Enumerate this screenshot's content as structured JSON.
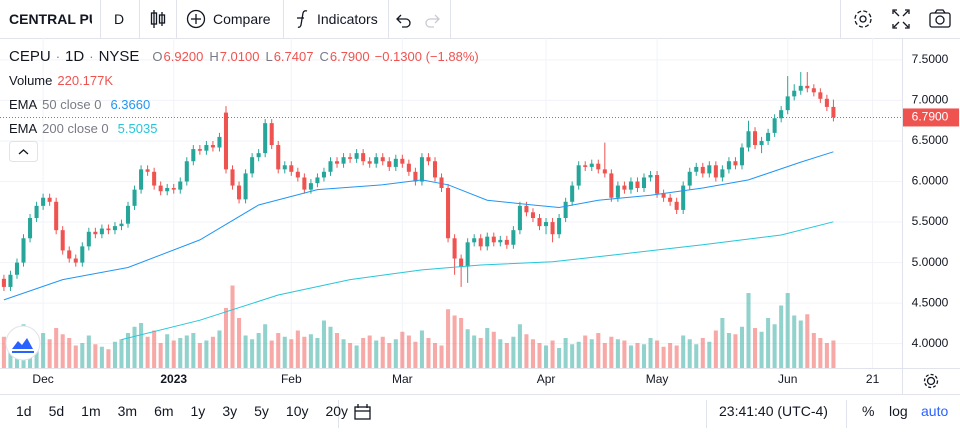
{
  "toolbar": {
    "symbol": "CENTRAL PU",
    "interval": "D",
    "compare": "Compare",
    "indicators": "Indicators"
  },
  "legend": {
    "ticker": "CEPU",
    "separator": "·",
    "interval": "1D",
    "exchange": "NYSE",
    "ohlc": [
      {
        "key": "O",
        "value": "6.9200"
      },
      {
        "key": "H",
        "value": "7.0100"
      },
      {
        "key": "L",
        "value": "6.7407"
      },
      {
        "key": "C",
        "value": "6.7900"
      }
    ],
    "change": "−0.1300 (−1.88%)",
    "volume_name": "Volume",
    "volume_value": "220.177K",
    "ema": [
      {
        "name": "EMA",
        "params": "50 close 0",
        "value": "6.3660"
      },
      {
        "name": "EMA",
        "params": "200 close 0",
        "value": "5.5035"
      }
    ]
  },
  "chart_data": {
    "type": "candlestick",
    "up_color": "#26a69a",
    "down_color": "#ef5350",
    "open": [
      4.8,
      4.7,
      4.85,
      5.0,
      5.3,
      5.55,
      5.7,
      5.8,
      5.75,
      5.4,
      5.15,
      5.05,
      5.0,
      5.2,
      5.38,
      5.35,
      5.42,
      5.4,
      5.45,
      5.48,
      5.7,
      5.9,
      6.15,
      6.12,
      5.95,
      5.88,
      5.92,
      5.9,
      6.0,
      6.25,
      6.4,
      6.38,
      6.45,
      6.42,
      6.85,
      6.15,
      5.95,
      5.78,
      6.1,
      6.3,
      6.35,
      6.72,
      6.45,
      6.15,
      6.2,
      6.12,
      6.05,
      5.9,
      5.98,
      6.05,
      6.12,
      6.25,
      6.22,
      6.3,
      6.28,
      6.35,
      6.25,
      6.22,
      6.3,
      6.25,
      6.18,
      6.28,
      6.22,
      6.12,
      6.0,
      6.3,
      6.25,
      6.05,
      5.92,
      5.3,
      5.05,
      4.95,
      5.25,
      5.3,
      5.2,
      5.32,
      5.25,
      5.28,
      5.22,
      5.4,
      5.7,
      5.62,
      5.55,
      5.45,
      5.5,
      5.35,
      5.55,
      5.75,
      5.95,
      6.2,
      6.18,
      6.22,
      6.15,
      6.1,
      5.8,
      5.95,
      5.9,
      6.0,
      5.92,
      6.05,
      6.08,
      5.85,
      5.8,
      5.75,
      5.65,
      5.95,
      6.12,
      6.18,
      6.1,
      6.2,
      6.05,
      6.15,
      6.25,
      6.2,
      6.42,
      6.62,
      6.45,
      6.5,
      6.6,
      6.78,
      6.88,
      7.05,
      7.12,
      7.18,
      7.15,
      7.1,
      7.02,
      6.92
    ],
    "high": [
      4.85,
      4.9,
      5.05,
      5.35,
      5.6,
      5.75,
      5.85,
      5.85,
      5.8,
      5.45,
      5.2,
      5.1,
      5.25,
      5.43,
      5.43,
      5.47,
      5.47,
      5.5,
      5.53,
      5.75,
      5.95,
      6.2,
      6.2,
      6.17,
      6.0,
      5.97,
      5.97,
      6.05,
      6.3,
      6.45,
      6.45,
      6.5,
      6.5,
      6.6,
      6.93,
      6.2,
      6.0,
      6.15,
      6.35,
      6.4,
      6.77,
      6.77,
      6.5,
      6.25,
      6.25,
      6.17,
      6.1,
      6.03,
      6.1,
      6.17,
      6.3,
      6.3,
      6.35,
      6.35,
      6.4,
      6.4,
      6.3,
      6.35,
      6.35,
      6.3,
      6.33,
      6.33,
      6.27,
      6.17,
      6.35,
      6.35,
      6.3,
      6.1,
      5.97,
      5.35,
      5.1,
      5.3,
      5.35,
      5.35,
      5.37,
      5.37,
      5.33,
      5.33,
      5.45,
      5.75,
      5.75,
      5.67,
      5.6,
      5.55,
      5.55,
      5.6,
      5.8,
      6.0,
      6.25,
      6.25,
      6.27,
      6.27,
      6.48,
      6.15,
      6.0,
      6.0,
      6.05,
      6.05,
      6.1,
      6.13,
      6.13,
      5.9,
      5.85,
      5.8,
      6.0,
      6.17,
      6.23,
      6.23,
      6.25,
      6.25,
      6.2,
      6.3,
      6.3,
      6.47,
      6.75,
      6.67,
      6.55,
      6.65,
      6.83,
      6.93,
      7.3,
      7.2,
      7.35,
      7.35,
      7.2,
      7.15,
      7.07,
      7.01
    ],
    "low": [
      4.65,
      4.65,
      4.8,
      4.95,
      5.25,
      5.5,
      5.65,
      5.7,
      5.35,
      5.1,
      5.0,
      4.95,
      4.95,
      5.15,
      5.3,
      5.3,
      5.35,
      5.35,
      5.4,
      5.43,
      5.65,
      5.85,
      6.07,
      5.9,
      5.83,
      5.83,
      5.85,
      5.85,
      5.95,
      6.2,
      6.33,
      6.33,
      6.37,
      6.37,
      6.1,
      5.9,
      5.73,
      5.73,
      6.05,
      6.25,
      6.3,
      6.4,
      6.1,
      6.1,
      6.07,
      6.0,
      5.85,
      5.85,
      5.93,
      6.0,
      6.07,
      6.17,
      6.17,
      6.23,
      6.23,
      6.2,
      6.17,
      6.17,
      6.2,
      6.13,
      6.13,
      6.17,
      6.07,
      5.95,
      5.95,
      6.2,
      6.0,
      5.87,
      5.25,
      4.85,
      4.7,
      4.75,
      5.2,
      5.15,
      5.15,
      5.2,
      5.2,
      5.17,
      5.17,
      5.35,
      5.57,
      5.5,
      5.4,
      5.35,
      5.25,
      5.3,
      5.5,
      5.7,
      5.9,
      6.13,
      6.13,
      6.1,
      6.05,
      5.75,
      5.75,
      5.85,
      5.85,
      5.87,
      5.87,
      6.0,
      5.8,
      5.75,
      5.7,
      5.6,
      5.6,
      5.9,
      6.07,
      6.05,
      6.05,
      6.0,
      6.0,
      6.1,
      6.15,
      6.15,
      6.37,
      6.4,
      6.35,
      6.45,
      6.55,
      6.73,
      6.83,
      7.0,
      7.07,
      7.1,
      7.05,
      6.97,
      6.87,
      6.7407
    ],
    "close": [
      4.7,
      4.85,
      5.0,
      5.3,
      5.55,
      5.7,
      5.8,
      5.75,
      5.4,
      5.15,
      5.05,
      5.0,
      5.2,
      5.38,
      5.35,
      5.42,
      5.4,
      5.45,
      5.48,
      5.7,
      5.9,
      6.15,
      6.12,
      5.95,
      5.88,
      5.92,
      5.9,
      6.0,
      6.25,
      6.4,
      6.38,
      6.45,
      6.42,
      6.55,
      6.15,
      5.95,
      5.78,
      6.1,
      6.3,
      6.35,
      6.72,
      6.45,
      6.15,
      6.2,
      6.12,
      6.05,
      5.9,
      5.98,
      6.05,
      6.12,
      6.25,
      6.22,
      6.3,
      6.28,
      6.35,
      6.25,
      6.22,
      6.3,
      6.25,
      6.18,
      6.28,
      6.22,
      6.12,
      6.0,
      6.3,
      6.25,
      6.05,
      5.92,
      5.3,
      5.05,
      4.95,
      5.25,
      5.3,
      5.2,
      5.32,
      5.25,
      5.28,
      5.22,
      5.4,
      5.7,
      5.62,
      5.55,
      5.45,
      5.5,
      5.35,
      5.55,
      5.75,
      5.95,
      6.2,
      6.18,
      6.22,
      6.15,
      6.1,
      5.8,
      5.95,
      5.9,
      6.0,
      5.92,
      6.05,
      6.08,
      5.85,
      5.8,
      5.75,
      5.65,
      5.95,
      6.12,
      6.18,
      6.1,
      6.2,
      6.05,
      6.15,
      6.25,
      6.2,
      6.42,
      6.62,
      6.45,
      6.5,
      6.6,
      6.78,
      6.88,
      7.05,
      7.12,
      7.18,
      7.15,
      7.1,
      7.02,
      6.92,
      6.79
    ],
    "volume": [
      250000,
      180000,
      300000,
      350000,
      260000,
      200000,
      280000,
      230000,
      320000,
      270000,
      240000,
      180000,
      200000,
      260000,
      190000,
      170000,
      150000,
      210000,
      230000,
      280000,
      330000,
      360000,
      250000,
      300000,
      200000,
      270000,
      220000,
      240000,
      260000,
      280000,
      200000,
      220000,
      250000,
      300000,
      480000,
      660000,
      400000,
      260000,
      230000,
      280000,
      350000,
      220000,
      280000,
      250000,
      230000,
      300000,
      250000,
      270000,
      240000,
      380000,
      330000,
      280000,
      230000,
      200000,
      180000,
      240000,
      260000,
      220000,
      250000,
      200000,
      230000,
      290000,
      260000,
      210000,
      300000,
      240000,
      200000,
      180000,
      470000,
      420000,
      400000,
      310000,
      260000,
      240000,
      320000,
      290000,
      230000,
      200000,
      250000,
      350000,
      270000,
      230000,
      200000,
      180000,
      220000,
      160000,
      240000,
      190000,
      210000,
      260000,
      230000,
      280000,
      200000,
      250000,
      230000,
      220000,
      180000,
      200000,
      190000,
      240000,
      220000,
      170000,
      200000,
      180000,
      260000,
      230000,
      190000,
      240000,
      210000,
      300000,
      400000,
      280000,
      270000,
      330000,
      600000,
      320000,
      290000,
      400000,
      350000,
      500000,
      600000,
      420000,
      380000,
      430000,
      280000,
      240000,
      200000,
      220177
    ],
    "volume_lim": [
      0,
      800000
    ],
    "series": [
      {
        "color": "#2196f3",
        "x": [
          0,
          9,
          19,
          30,
          39,
          48,
          58,
          64,
          68,
          74,
          81,
          85,
          91,
          99,
          107,
          114,
          122,
          127
        ],
        "values": [
          4.54,
          4.79,
          4.94,
          5.28,
          5.71,
          5.9,
          5.96,
          6.02,
          5.96,
          5.77,
          5.71,
          5.68,
          5.77,
          5.83,
          5.92,
          6.02,
          6.24,
          6.366
        ]
      },
      {
        "color": "#26c6da",
        "x": [
          18,
          30,
          42,
          53,
          64,
          73,
          84,
          94,
          107,
          119,
          127
        ],
        "values": [
          4.05,
          4.29,
          4.6,
          4.79,
          4.91,
          4.97,
          5.01,
          5.1,
          5.22,
          5.34,
          5.5035
        ]
      }
    ],
    "last_price": 6.79,
    "last_price_label": "6.7900",
    "xlim": [
      -0.6,
      137.5
    ],
    "xticks": [
      {
        "value": 6,
        "label": "Dec"
      },
      {
        "value": 26,
        "label": "2023"
      },
      {
        "value": 44,
        "label": "Feb"
      },
      {
        "value": 61,
        "label": "Mar"
      },
      {
        "value": 83,
        "label": "Apr"
      },
      {
        "value": 100,
        "label": "May"
      },
      {
        "value": 120,
        "label": "Jun"
      },
      {
        "value": 133,
        "label": "21"
      }
    ],
    "ylim": [
      3.7,
      7.77
    ],
    "yticks": [
      {
        "value": 4.0,
        "label": "4.0000"
      },
      {
        "value": 4.5,
        "label": "4.5000"
      },
      {
        "value": 5.0,
        "label": "5.0000"
      },
      {
        "value": 5.5,
        "label": "5.5000"
      },
      {
        "value": 6.0,
        "label": "6.0000"
      },
      {
        "value": 6.5,
        "label": "6.5000"
      },
      {
        "value": 7.0,
        "label": "7.0000"
      },
      {
        "value": 7.5,
        "label": "7.5000"
      }
    ],
    "grid": true
  },
  "bottom_bar": {
    "ranges": [
      "1d",
      "5d",
      "1m",
      "3m",
      "6m",
      "1y",
      "3y",
      "5y",
      "10y",
      "20y"
    ],
    "clock": "23:41:40 (UTC-4)",
    "percent": "%",
    "log": "log",
    "auto": "auto"
  }
}
